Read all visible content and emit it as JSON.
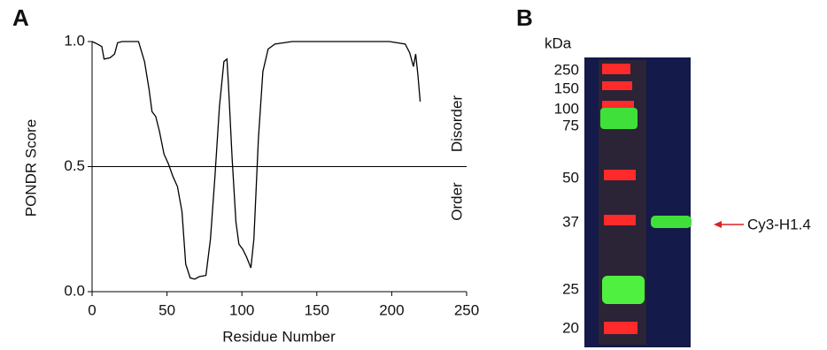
{
  "chart_data": {
    "type": "line",
    "panel_label": "A",
    "x_label": "Residue Number",
    "y_label": "PONDR Score",
    "x": [
      0,
      3.5,
      6.5,
      8,
      12,
      15,
      17,
      20,
      31,
      35,
      38,
      40,
      42.5,
      45,
      48,
      51,
      54,
      57,
      60,
      62.5,
      65.5,
      68.5,
      71.5,
      76,
      79,
      82,
      85,
      88,
      90,
      91,
      93.5,
      96,
      98,
      100.5,
      103,
      106,
      108,
      111,
      114,
      117.5,
      122,
      133.5,
      198.5,
      209,
      212,
      214.5,
      216,
      217.5,
      219
    ],
    "values": [
      1.0,
      0.99,
      0.98,
      0.93,
      0.935,
      0.95,
      0.995,
      1.0,
      1.0,
      0.92,
      0.81,
      0.72,
      0.7,
      0.64,
      0.55,
      0.51,
      0.46,
      0.42,
      0.32,
      0.11,
      0.055,
      0.05,
      0.06,
      0.065,
      0.21,
      0.46,
      0.74,
      0.92,
      0.93,
      0.83,
      0.53,
      0.28,
      0.19,
      0.17,
      0.14,
      0.095,
      0.21,
      0.61,
      0.88,
      0.97,
      0.99,
      1.0,
      1.0,
      0.99,
      0.955,
      0.9,
      0.95,
      0.865,
      0.76
    ],
    "color": "#000000",
    "xlim": [
      0,
      250
    ],
    "xticks": [
      0,
      50,
      100,
      150,
      200,
      250
    ],
    "ylim": [
      0,
      1
    ],
    "yticks": [
      {
        "value": 0,
        "label": "0.0"
      },
      0.5,
      {
        "value": 1,
        "label": "1.0"
      }
    ],
    "threshold": 0.5,
    "upper_region_label": "Disorder",
    "lower_region_label": "Order"
  },
  "gel": {
    "panel_label": "B",
    "unit": "kDa",
    "markers": [
      250,
      150,
      100,
      75,
      50,
      37,
      25,
      20
    ],
    "annotation": "Cy3-H1.4"
  }
}
